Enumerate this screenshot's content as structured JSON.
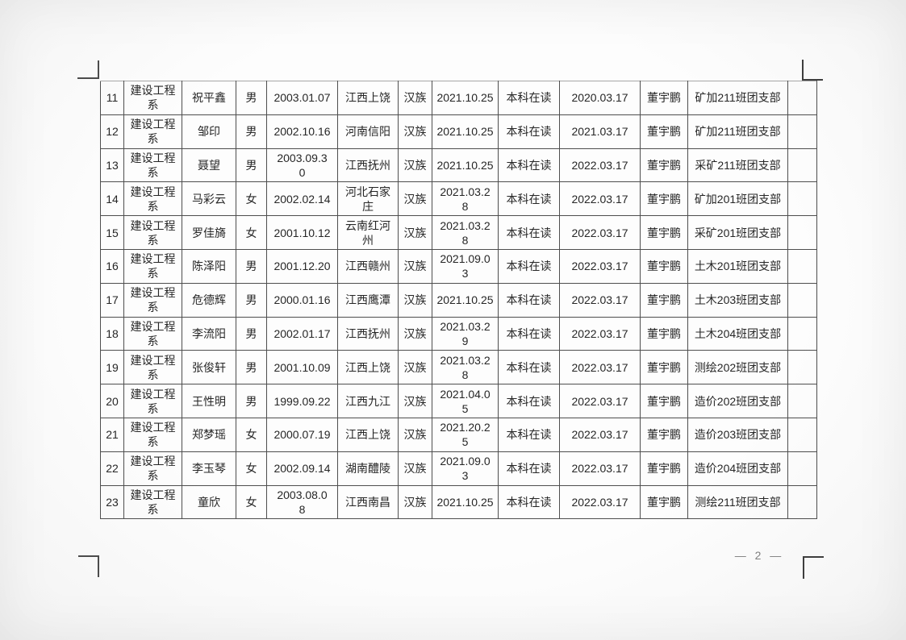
{
  "page": {
    "number": "— 2 —"
  },
  "table": {
    "rows": [
      {
        "no": "11",
        "dept": "建设工程\n系",
        "name": "祝平鑫",
        "gender": "男",
        "birth": "2003.01.07",
        "origin": "江西上饶",
        "ethnic": "汉族",
        "join_date": "2021.10.25",
        "status": "本科在读",
        "record_date": "2020.03.17",
        "approver": "董宇鹏",
        "branch": "矿加211班团支部"
      },
      {
        "no": "12",
        "dept": "建设工程\n系",
        "name": "邹印",
        "gender": "男",
        "birth": "2002.10.16",
        "origin": "河南信阳",
        "ethnic": "汉族",
        "join_date": "2021.10.25",
        "status": "本科在读",
        "record_date": "2021.03.17",
        "approver": "董宇鹏",
        "branch": "矿加211班团支部"
      },
      {
        "no": "13",
        "dept": "建设工程\n系",
        "name": "聂望",
        "gender": "男",
        "birth": "2003.09.3\n0",
        "origin": "江西抚州",
        "ethnic": "汉族",
        "join_date": "2021.10.25",
        "status": "本科在读",
        "record_date": "2022.03.17",
        "approver": "董宇鹏",
        "branch": "采矿211班团支部"
      },
      {
        "no": "14",
        "dept": "建设工程\n系",
        "name": "马彩云",
        "gender": "女",
        "birth": "2002.02.14",
        "origin": "河北石家\n庄",
        "ethnic": "汉族",
        "join_date": "2021.03.2\n8",
        "status": "本科在读",
        "record_date": "2022.03.17",
        "approver": "董宇鹏",
        "branch": "矿加201班团支部"
      },
      {
        "no": "15",
        "dept": "建设工程\n系",
        "name": "罗佳旖",
        "gender": "女",
        "birth": "2001.10.12",
        "origin": "云南红河\n州",
        "ethnic": "汉族",
        "join_date": "2021.03.2\n8",
        "status": "本科在读",
        "record_date": "2022.03.17",
        "approver": "董宇鹏",
        "branch": "采矿201班团支部"
      },
      {
        "no": "16",
        "dept": "建设工程\n系",
        "name": "陈泽阳",
        "gender": "男",
        "birth": "2001.12.20",
        "origin": "江西赣州",
        "ethnic": "汉族",
        "join_date": "2021.09.0\n3",
        "status": "本科在读",
        "record_date": "2022.03.17",
        "approver": "董宇鹏",
        "branch": "土木201班团支部"
      },
      {
        "no": "17",
        "dept": "建设工程\n系",
        "name": "危德辉",
        "gender": "男",
        "birth": "2000.01.16",
        "origin": "江西鹰潭",
        "ethnic": "汉族",
        "join_date": "2021.10.25",
        "status": "本科在读",
        "record_date": "2022.03.17",
        "approver": "董宇鹏",
        "branch": "土木203班团支部"
      },
      {
        "no": "18",
        "dept": "建设工程\n系",
        "name": "李流阳",
        "gender": "男",
        "birth": "2002.01.17",
        "origin": "江西抚州",
        "ethnic": "汉族",
        "join_date": "2021.03.2\n9",
        "status": "本科在读",
        "record_date": "2022.03.17",
        "approver": "董宇鹏",
        "branch": "土木204班团支部"
      },
      {
        "no": "19",
        "dept": "建设工程\n系",
        "name": "张俊轩",
        "gender": "男",
        "birth": "2001.10.09",
        "origin": "江西上饶",
        "ethnic": "汉族",
        "join_date": "2021.03.2\n8",
        "status": "本科在读",
        "record_date": "2022.03.17",
        "approver": "董宇鹏",
        "branch": "测绘202班团支部"
      },
      {
        "no": "20",
        "dept": "建设工程\n系",
        "name": "王性明",
        "gender": "男",
        "birth": "1999.09.22",
        "origin": "江西九江",
        "ethnic": "汉族",
        "join_date": "2021.04.0\n5",
        "status": "本科在读",
        "record_date": "2022.03.17",
        "approver": "董宇鹏",
        "branch": "造价202班团支部"
      },
      {
        "no": "21",
        "dept": "建设工程\n系",
        "name": "郑梦瑶",
        "gender": "女",
        "birth": "2000.07.19",
        "origin": "江西上饶",
        "ethnic": "汉族",
        "join_date": "2021.20.2\n5",
        "status": "本科在读",
        "record_date": "2022.03.17",
        "approver": "董宇鹏",
        "branch": "造价203班团支部"
      },
      {
        "no": "22",
        "dept": "建设工程\n系",
        "name": "李玉琴",
        "gender": "女",
        "birth": "2002.09.14",
        "origin": "湖南醴陵",
        "ethnic": "汉族",
        "join_date": "2021.09.0\n3",
        "status": "本科在读",
        "record_date": "2022.03.17",
        "approver": "董宇鹏",
        "branch": "造价204班团支部"
      },
      {
        "no": "23",
        "dept": "建设工程\n系",
        "name": "童欣",
        "gender": "女",
        "birth": "2003.08.0\n8",
        "origin": "江西南昌",
        "ethnic": "汉族",
        "join_date": "2021.10.25",
        "status": "本科在读",
        "record_date": "2022.03.17",
        "approver": "董宇鹏",
        "branch": "测绘211班团支部"
      }
    ]
  }
}
